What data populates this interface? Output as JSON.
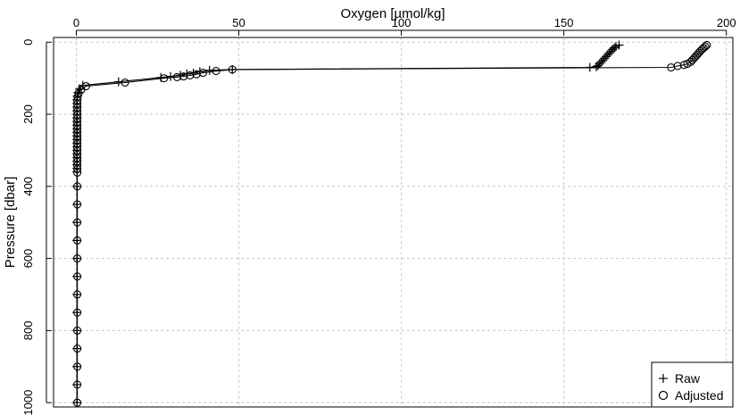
{
  "chart_data": {
    "type": "scatter",
    "xlabel": "Oxygen [µmol/kg]",
    "ylabel": "Pressure [dbar]",
    "xlim": [
      -7,
      202
    ],
    "ylim": [
      1012,
      -13
    ],
    "x_axis_position": "top",
    "y_axis_inverted": true,
    "grid": true,
    "xticks": [
      0,
      50,
      100,
      150,
      200
    ],
    "yticks": [
      0,
      200,
      400,
      600,
      800,
      1000
    ],
    "xtick_labels": [
      "0",
      "50",
      "100",
      "150",
      "200"
    ],
    "ytick_labels": [
      "0",
      "200",
      "400",
      "600",
      "800",
      "1000"
    ],
    "legend": {
      "position": "bottom-right",
      "entries": [
        {
          "label": "Raw",
          "marker": "+"
        },
        {
          "label": "Adjusted",
          "marker": "o"
        }
      ]
    },
    "series": [
      {
        "name": "Raw",
        "marker": "+",
        "points": [
          [
            167,
            8
          ],
          [
            166,
            12
          ],
          [
            165.5,
            16
          ],
          [
            165,
            20
          ],
          [
            164.5,
            25
          ],
          [
            164,
            30
          ],
          [
            163.5,
            35
          ],
          [
            163,
            40
          ],
          [
            162.5,
            45
          ],
          [
            162,
            50
          ],
          [
            161.5,
            55
          ],
          [
            161,
            60
          ],
          [
            160.5,
            65
          ],
          [
            160,
            68
          ],
          [
            158,
            70
          ],
          [
            48,
            76
          ],
          [
            41,
            78
          ],
          [
            38,
            82
          ],
          [
            36,
            86
          ],
          [
            34,
            88
          ],
          [
            32,
            92
          ],
          [
            29,
            95
          ],
          [
            26,
            98
          ],
          [
            13,
            110
          ],
          [
            2,
            120
          ],
          [
            1,
            130
          ],
          [
            0.5,
            140
          ],
          [
            0.3,
            150
          ],
          [
            0.2,
            160
          ],
          [
            0.2,
            170
          ],
          [
            0.2,
            180
          ],
          [
            0.2,
            190
          ],
          [
            0.2,
            200
          ],
          [
            0.2,
            210
          ],
          [
            0.2,
            220
          ],
          [
            0.2,
            230
          ],
          [
            0.2,
            240
          ],
          [
            0.2,
            250
          ],
          [
            0.2,
            260
          ],
          [
            0.2,
            270
          ],
          [
            0.2,
            280
          ],
          [
            0.2,
            290
          ],
          [
            0.2,
            300
          ],
          [
            0.2,
            310
          ],
          [
            0.2,
            320
          ],
          [
            0.2,
            330
          ],
          [
            0.2,
            340
          ],
          [
            0.2,
            350
          ],
          [
            0.2,
            360
          ],
          [
            0.2,
            400
          ],
          [
            0.2,
            450
          ],
          [
            0.2,
            500
          ],
          [
            0.2,
            550
          ],
          [
            0.2,
            600
          ],
          [
            0.2,
            650
          ],
          [
            0.2,
            700
          ],
          [
            0.2,
            750
          ],
          [
            0.2,
            800
          ],
          [
            0.2,
            850
          ],
          [
            0.2,
            900
          ],
          [
            0.2,
            950
          ],
          [
            0.2,
            1000
          ]
        ]
      },
      {
        "name": "Adjusted",
        "marker": "o",
        "points": [
          [
            194,
            8
          ],
          [
            193.5,
            12
          ],
          [
            193,
            16
          ],
          [
            192.5,
            20
          ],
          [
            192,
            25
          ],
          [
            191.5,
            30
          ],
          [
            191,
            35
          ],
          [
            190.5,
            40
          ],
          [
            190,
            45
          ],
          [
            189.5,
            50
          ],
          [
            189,
            55
          ],
          [
            188,
            60
          ],
          [
            187,
            63
          ],
          [
            185,
            66
          ],
          [
            183,
            70
          ],
          [
            48,
            76
          ],
          [
            43,
            80
          ],
          [
            39,
            85
          ],
          [
            37,
            89
          ],
          [
            35,
            92
          ],
          [
            33,
            95
          ],
          [
            31,
            97
          ],
          [
            27,
            100
          ],
          [
            15,
            112
          ],
          [
            3,
            122
          ],
          [
            1.5,
            132
          ],
          [
            0.7,
            142
          ],
          [
            0.4,
            152
          ],
          [
            0.3,
            162
          ],
          [
            0.3,
            172
          ],
          [
            0.3,
            182
          ],
          [
            0.3,
            192
          ],
          [
            0.3,
            202
          ],
          [
            0.3,
            212
          ],
          [
            0.3,
            222
          ],
          [
            0.3,
            232
          ],
          [
            0.3,
            242
          ],
          [
            0.3,
            252
          ],
          [
            0.3,
            262
          ],
          [
            0.3,
            272
          ],
          [
            0.3,
            282
          ],
          [
            0.3,
            292
          ],
          [
            0.3,
            302
          ],
          [
            0.3,
            312
          ],
          [
            0.3,
            322
          ],
          [
            0.3,
            332
          ],
          [
            0.3,
            342
          ],
          [
            0.3,
            352
          ],
          [
            0.3,
            362
          ],
          [
            0.3,
            400
          ],
          [
            0.3,
            450
          ],
          [
            0.3,
            500
          ],
          [
            0.3,
            550
          ],
          [
            0.3,
            600
          ],
          [
            0.3,
            650
          ],
          [
            0.3,
            700
          ],
          [
            0.3,
            750
          ],
          [
            0.3,
            800
          ],
          [
            0.3,
            850
          ],
          [
            0.3,
            900
          ],
          [
            0.3,
            950
          ],
          [
            0.3,
            1000
          ]
        ]
      }
    ]
  }
}
